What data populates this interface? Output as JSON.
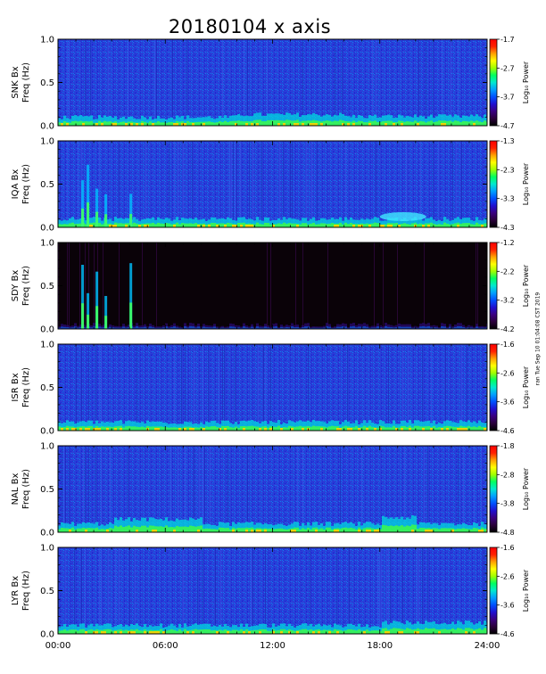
{
  "title": "20180104 x axis",
  "timestamp_note": "ran Tue Sep 10 01:04:08 CST 2019",
  "colors": {
    "colormap": [
      "#000000",
      "#2a003a",
      "#3a0080",
      "#2010d0",
      "#0050ff",
      "#00a0ff",
      "#00e8d0",
      "#00ff60",
      "#a0ff00",
      "#ffff00",
      "#ffa000",
      "#ff2000",
      "#ff0000"
    ],
    "sdy_background": "#0a0208"
  },
  "chart_data": {
    "type": "heatmap",
    "x_ticks": [
      "00:00",
      "06:00",
      "12:00",
      "18:00",
      "24:00"
    ],
    "x_range_hours": [
      0,
      24
    ],
    "y_range_hz": [
      0,
      1.0
    ],
    "y_ticks": [
      "0.0",
      "0.5",
      "1.0"
    ],
    "colorbar_label": "Log₁₀ Power",
    "panels": [
      {
        "id": "snk",
        "ylabel_station": "SNK Bx",
        "ylabel_unit": "Freq (Hz)",
        "colorbar_ticks": [
          "-1.7",
          "-2.7",
          "-3.7",
          "-4.7"
        ],
        "clim": [
          -4.7,
          -1.7
        ],
        "style": "normal"
      },
      {
        "id": "iqa",
        "ylabel_station": "IQA Bx",
        "ylabel_unit": "Freq (Hz)",
        "colorbar_ticks": [
          "-1.3",
          "-2.3",
          "-3.3",
          "-4.3"
        ],
        "clim": [
          -4.3,
          -1.3
        ],
        "style": "normal"
      },
      {
        "id": "sdy",
        "ylabel_station": "SDY Bx",
        "ylabel_unit": "Freq (Hz)",
        "colorbar_ticks": [
          "-1.2",
          "-2.2",
          "-3.2",
          "-4.2"
        ],
        "clim": [
          -4.2,
          -1.2
        ],
        "style": "dark"
      },
      {
        "id": "isr",
        "ylabel_station": "ISR Bx",
        "ylabel_unit": "Freq (Hz)",
        "colorbar_ticks": [
          "-1.6",
          "-2.6",
          "-3.6",
          "-4.6"
        ],
        "clim": [
          -4.6,
          -1.6
        ],
        "style": "normal"
      },
      {
        "id": "nal",
        "ylabel_station": "NAL Bx",
        "ylabel_unit": "Freq (Hz)",
        "colorbar_ticks": [
          "-1.8",
          "-2.8",
          "-3.8",
          "-4.8"
        ],
        "clim": [
          -4.8,
          -1.8
        ],
        "style": "normal"
      },
      {
        "id": "lyr",
        "ylabel_station": "LYR Bx",
        "ylabel_unit": "Freq (Hz)",
        "colorbar_ticks": [
          "-1.6",
          "-2.6",
          "-3.6",
          "-4.6"
        ],
        "clim": [
          -4.6,
          -1.6
        ],
        "style": "normal"
      }
    ]
  }
}
